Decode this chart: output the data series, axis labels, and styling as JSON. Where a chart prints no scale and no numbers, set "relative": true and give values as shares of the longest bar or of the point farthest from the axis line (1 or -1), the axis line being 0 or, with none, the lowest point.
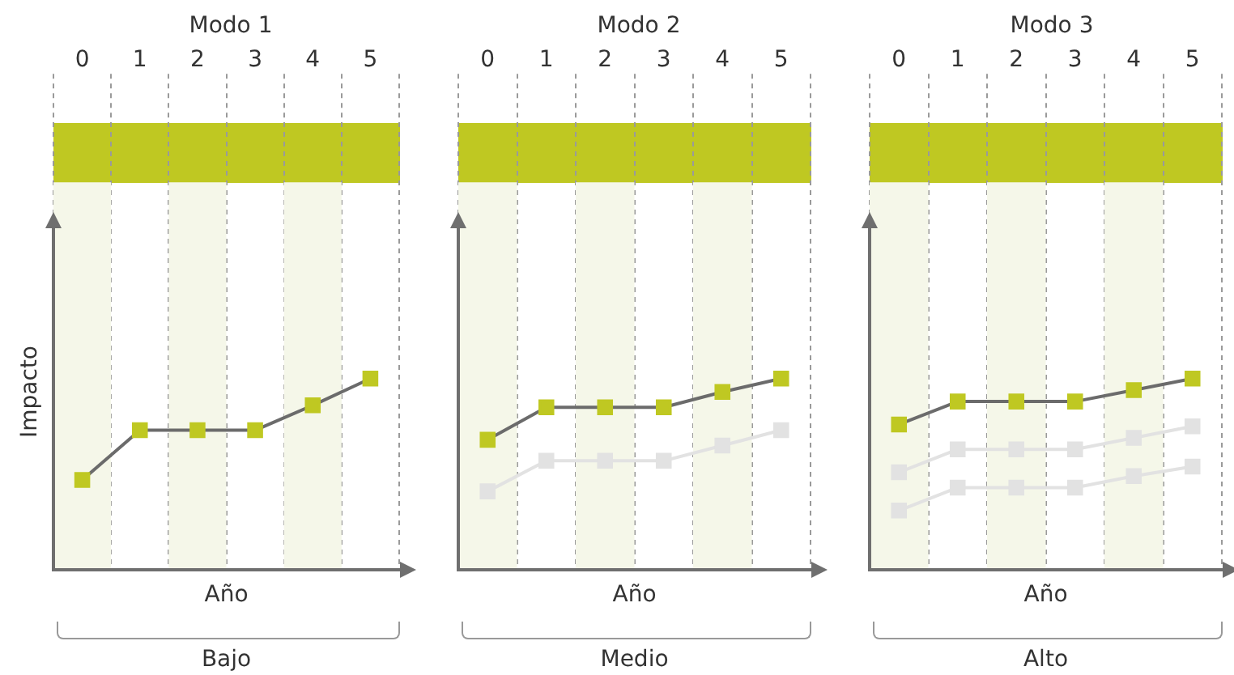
{
  "chart_data": [
    {
      "type": "line",
      "title": "Modo 1",
      "xlabel": "Año",
      "ylabel": "Impacto",
      "categories": [
        "0",
        "1",
        "2",
        "3",
        "4",
        "5"
      ],
      "relative": true,
      "grid": "x",
      "marker": "square",
      "legend": false,
      "annotations": [
        "Bajo"
      ],
      "series": [
        {
          "color": "#bfc822",
          "values": [
            0.47,
            0.73,
            0.73,
            0.73,
            0.86,
            1
          ]
        }
      ]
    },
    {
      "type": "line",
      "title": "Modo 2",
      "xlabel": "Año",
      "categories": [
        "0",
        "1",
        "2",
        "3",
        "4",
        "5"
      ],
      "relative": true,
      "grid": "x",
      "marker": "square",
      "legend": false,
      "annotations": [
        "Medio"
      ],
      "series": [
        {
          "color": "#bfc822",
          "values": [
            0.68,
            0.85,
            0.85,
            0.85,
            0.93,
            1
          ]
        },
        {
          "color": "#e2e2e2",
          "values": [
            0.41,
            0.57,
            0.57,
            0.57,
            0.65,
            0.73
          ]
        }
      ]
    },
    {
      "type": "line",
      "title": "Modo 3",
      "xlabel": "Año",
      "categories": [
        "0",
        "1",
        "2",
        "3",
        "4",
        "5"
      ],
      "relative": true,
      "grid": "x",
      "marker": "square",
      "legend": false,
      "annotations": [
        "Alto"
      ],
      "series": [
        {
          "color": "#bfc822",
          "values": [
            0.76,
            0.88,
            0.88,
            0.88,
            0.94,
            1
          ]
        },
        {
          "color": "#e2e2e2",
          "values": [
            0.51,
            0.63,
            0.63,
            0.63,
            0.69,
            0.75
          ]
        },
        {
          "color": "#e2e2e2",
          "values": [
            0.31,
            0.43,
            0.43,
            0.43,
            0.49,
            0.54
          ]
        }
      ]
    }
  ]
}
